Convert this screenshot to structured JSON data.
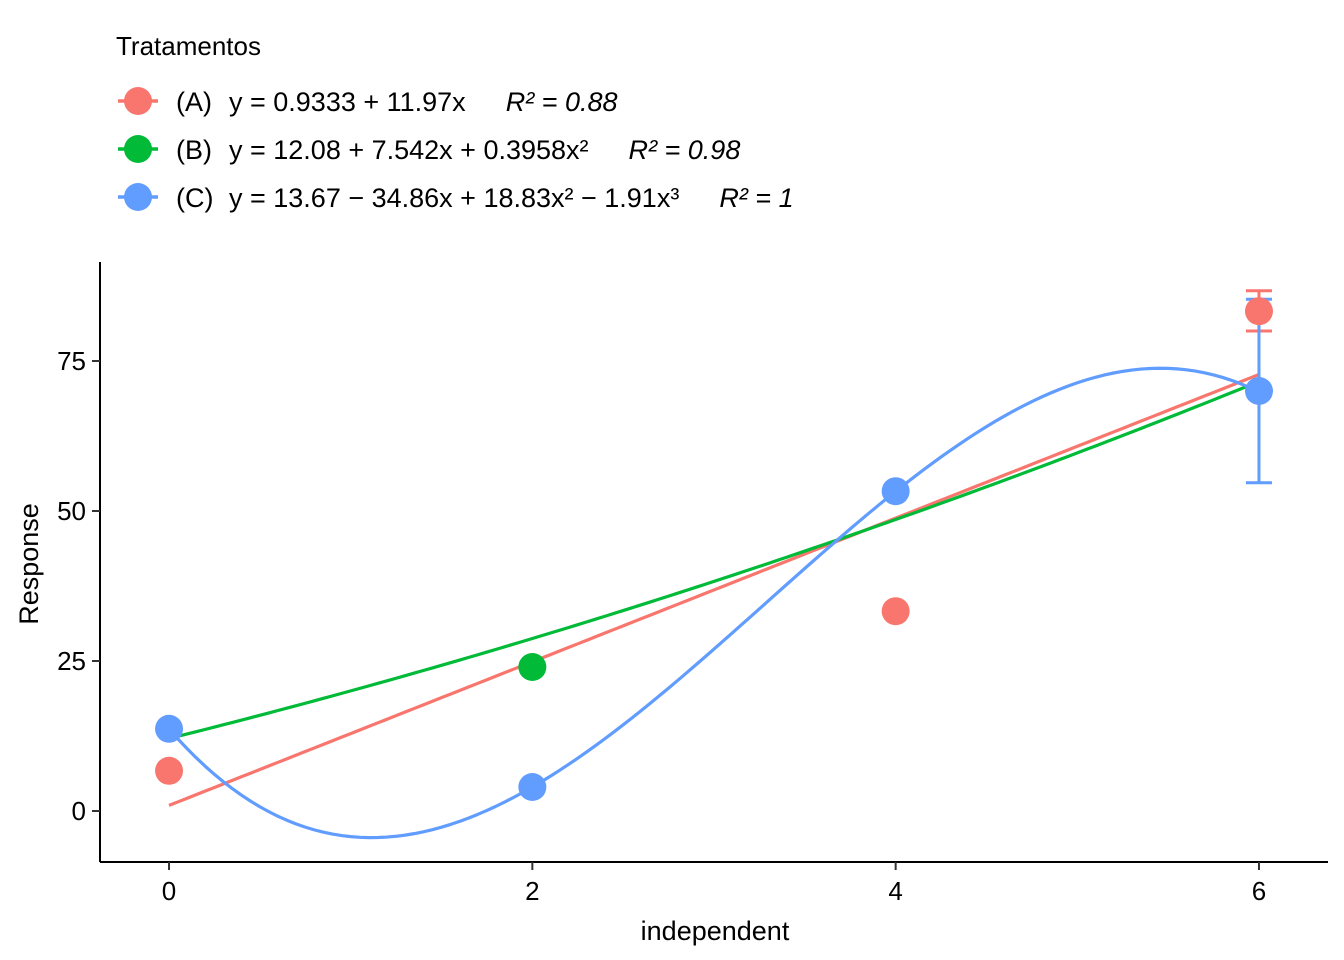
{
  "chart_data": {
    "type": "scatter",
    "xlabel": "independent",
    "ylabel": "Response",
    "xlim": [
      -0.38,
      6.38
    ],
    "ylim": [
      -8.5,
      91.5
    ],
    "x_ticks": [
      0,
      2,
      4,
      6
    ],
    "y_ticks": [
      0,
      25,
      50,
      75
    ],
    "grid": false,
    "legend": {
      "title": "Tratamentos",
      "position": "top-left",
      "entries": [
        {
          "label": "(A)",
          "equation": "y = 0.9333 + 11.97x",
          "r2": "R² = 0.88"
        },
        {
          "label": "(B)",
          "equation": "y = 12.08 + 7.542x + 0.3958x²",
          "r2": "R² = 0.98"
        },
        {
          "label": "(C)",
          "equation": "y = 13.67 − 34.86x + 18.83x² − 1.91x³",
          "r2": "R² = 1"
        }
      ]
    },
    "series": [
      {
        "name": "(A)",
        "color": "#F8766D",
        "points": [
          {
            "x": 0,
            "y": 6.7
          },
          {
            "x": 4,
            "y": 33.3
          },
          {
            "x": 6,
            "y": 83.3,
            "err_low": 80,
            "err_high": 86.7
          }
        ],
        "fit": [
          0.9333,
          11.97
        ]
      },
      {
        "name": "(B)",
        "color": "#00BA38",
        "points": [
          {
            "x": 2,
            "y": 24
          }
        ],
        "fit": [
          12.08,
          7.542,
          0.3958
        ]
      },
      {
        "name": "(C)",
        "color": "#619CFF",
        "points": [
          {
            "x": 0,
            "y": 13.7
          },
          {
            "x": 2,
            "y": 4
          },
          {
            "x": 4,
            "y": 53.3
          },
          {
            "x": 6,
            "y": 70,
            "err_low": 54.7,
            "err_high": 85.3
          }
        ],
        "fit": [
          13.67,
          -34.86,
          18.83,
          -1.91
        ]
      }
    ]
  }
}
